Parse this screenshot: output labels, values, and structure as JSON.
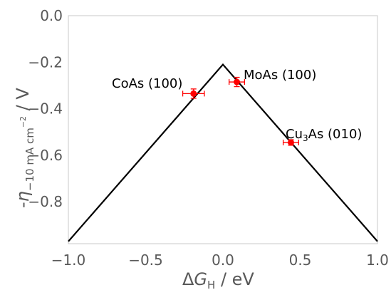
{
  "chart_data": {
    "type": "line",
    "title": "",
    "xlabel": "ΔG_H / eV",
    "ylabel": "-η_{−10 mA cm^−2} / V",
    "xlim": [
      -1.0,
      1.0
    ],
    "ylim": [
      -0.98,
      0.0
    ],
    "xticks": [
      -1.0,
      -0.5,
      0.0,
      0.5,
      1.0
    ],
    "xtick_labels": [
      "−1.0",
      "−0.5",
      "0.0",
      "0.5",
      "1.0"
    ],
    "yticks": [
      0.0,
      -0.2,
      -0.4,
      -0.6,
      -0.8
    ],
    "ytick_labels": [
      "0.0",
      "−0.2",
      "−0.4",
      "−0.6",
      "−0.8"
    ],
    "grid": false,
    "series": [
      {
        "kind": "line",
        "color": "#000000",
        "x": [
          -1.0,
          0.0,
          1.0
        ],
        "y": [
          -0.97,
          -0.21,
          -0.97
        ]
      },
      {
        "kind": "scatter",
        "color": "#ff0000",
        "points": [
          {
            "label": "CoAs (100)",
            "x": -0.19,
            "y": -0.335,
            "xerr": 0.07,
            "yerr": 0.02
          },
          {
            "label": "MoAs (100)",
            "x": 0.09,
            "y": -0.285,
            "xerr": 0.05,
            "yerr": 0.02
          },
          {
            "label": "Cu3As (010)",
            "x": 0.44,
            "y": -0.545,
            "xerr": 0.05,
            "yerr": 0.012
          }
        ]
      }
    ]
  },
  "annotations": {
    "coas": "CoAs (100)",
    "moas": "MoAs (100)",
    "cu3as_pre": "Cu",
    "cu3as_sub": "3",
    "cu3as_post": "As (010)"
  },
  "labels": {
    "x_delta": "Δ",
    "x_g": "G",
    "x_sub": "H",
    "x_rest": " / eV",
    "y_minus": "-",
    "y_eta": "η",
    "y_sub": "−10 mA cm",
    "y_sup": "−2",
    "y_rest": " / V"
  }
}
